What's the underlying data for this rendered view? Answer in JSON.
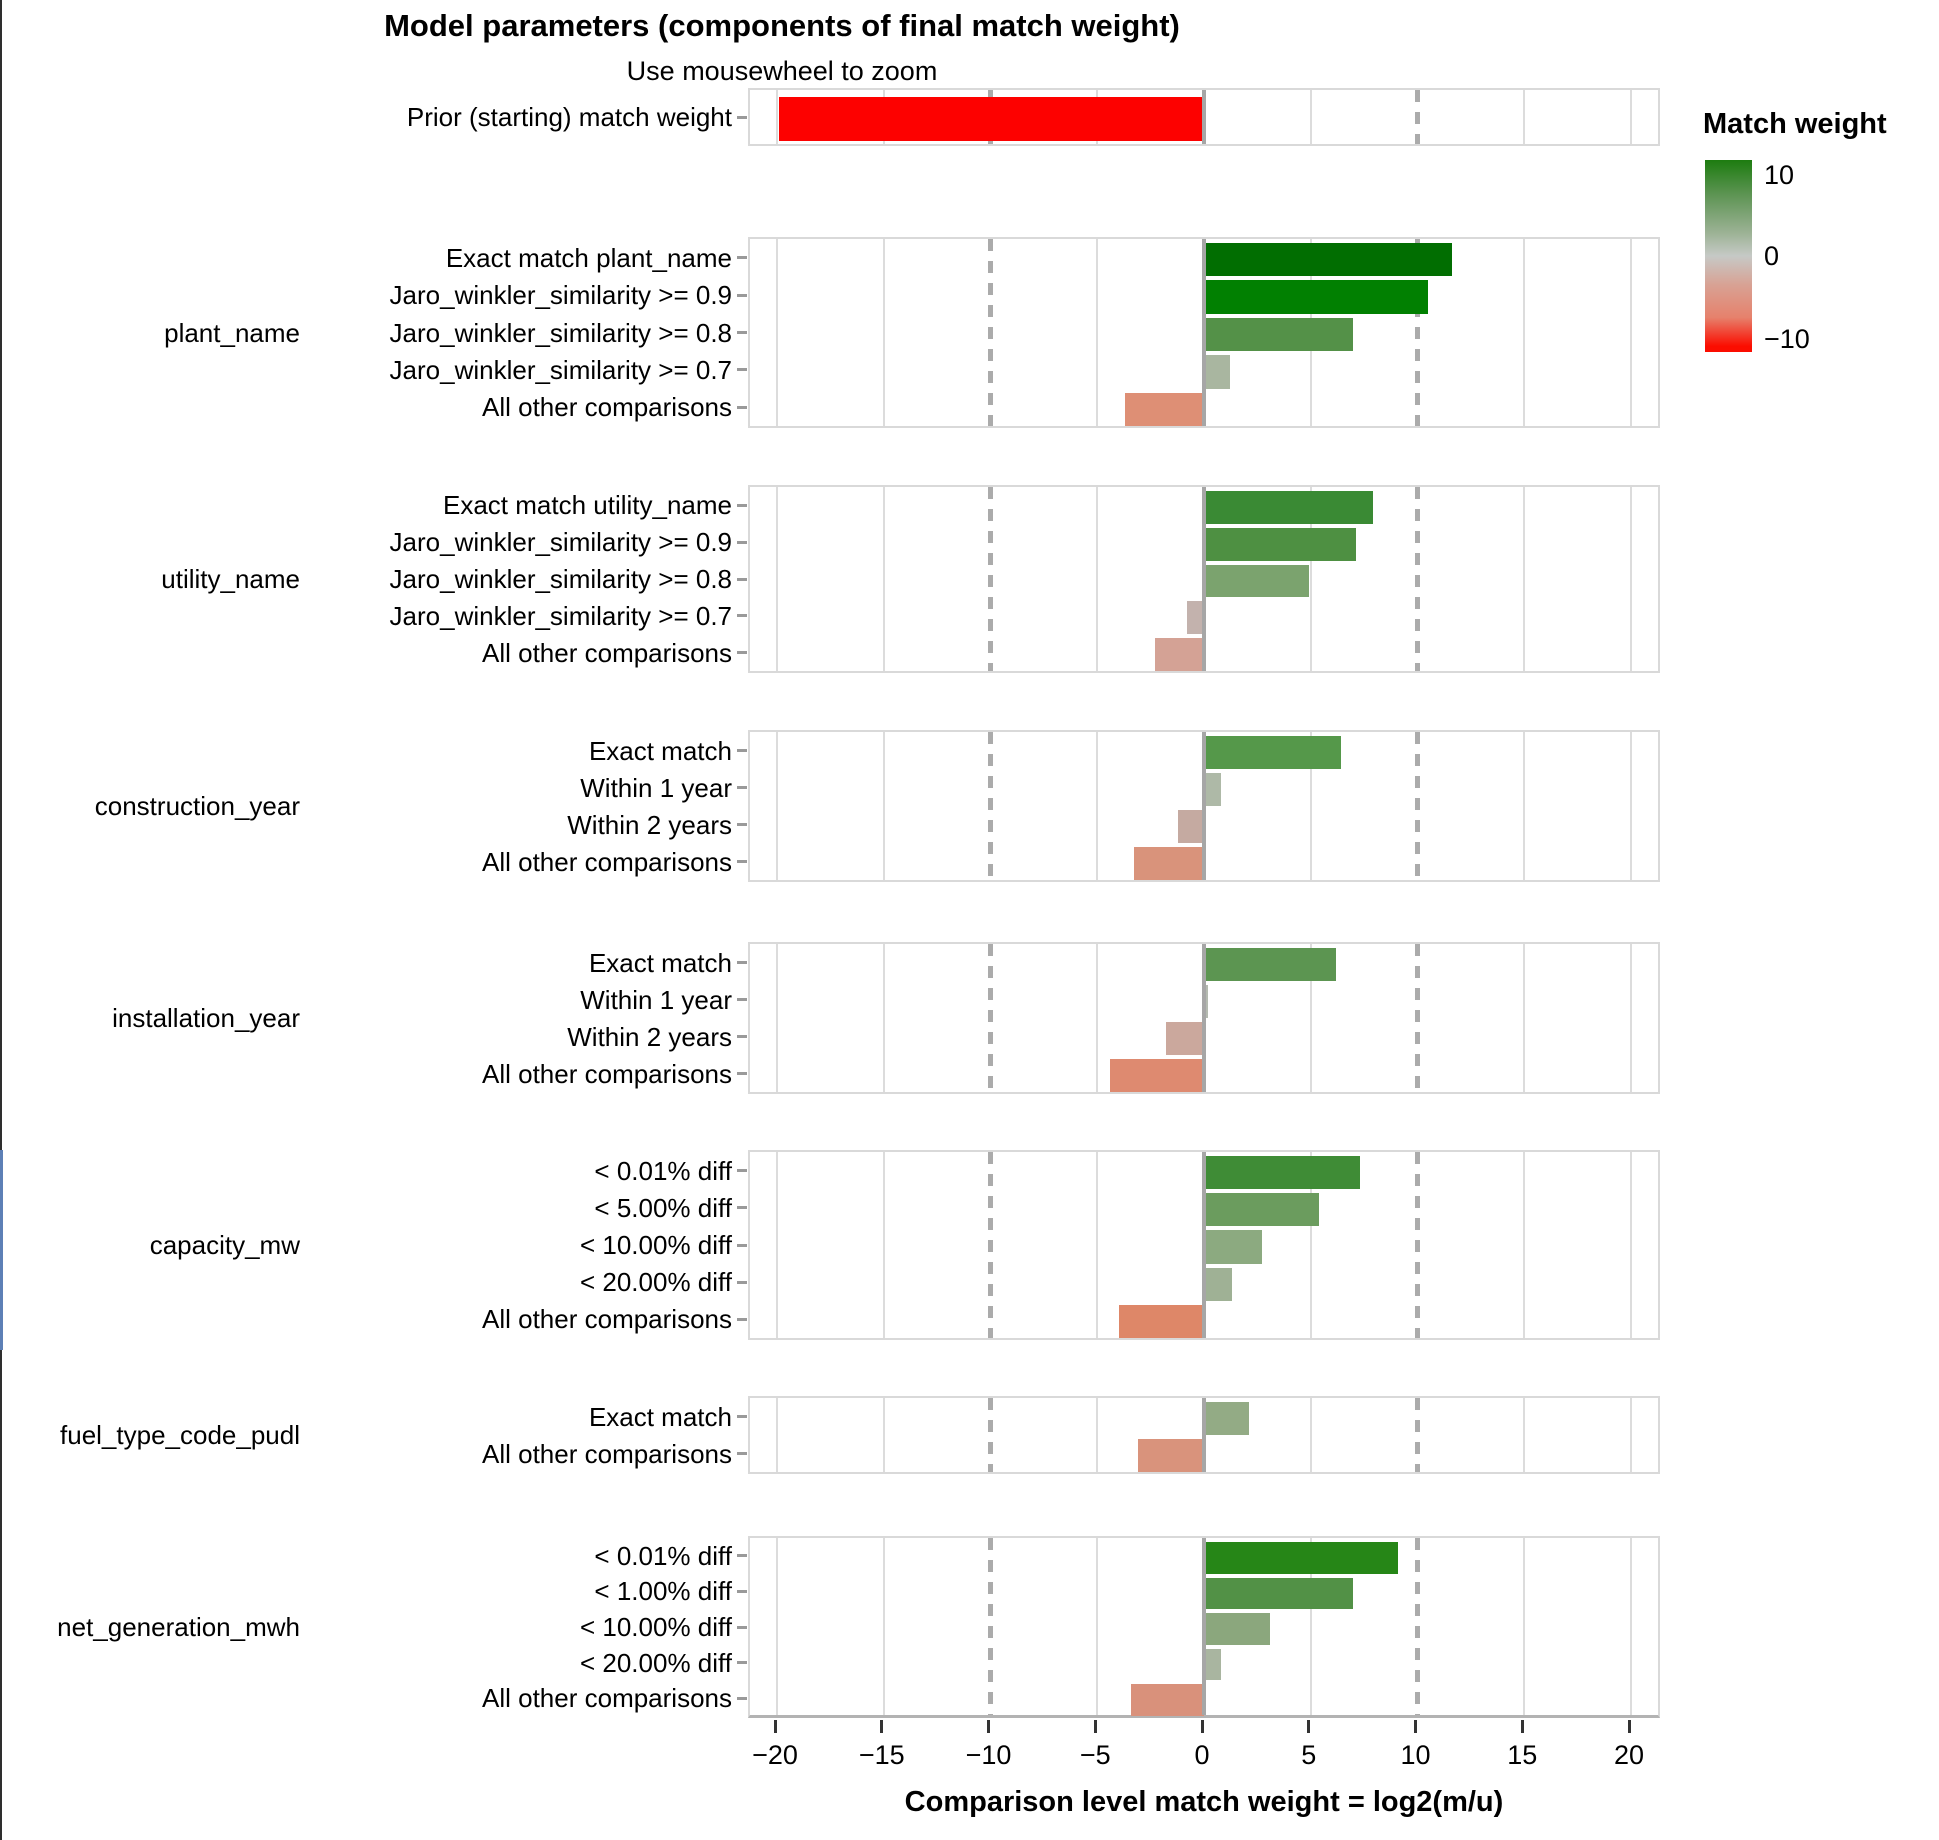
{
  "title": "Model parameters (components of final match weight)",
  "subtitle": "Use mousewheel to zoom",
  "xlabel": "Comparison level match weight = log2(m/u)",
  "legend": {
    "title": "Match weight",
    "ticks": [
      "10",
      "0",
      "−10"
    ],
    "gradient_colors": [
      "#1d7c10",
      "#5d9453",
      "#9cb295",
      "#c6c9c6",
      "#d8a294",
      "#e6816c",
      "#fb0d00"
    ]
  },
  "axis": {
    "domain": [
      -21.3,
      21.4
    ],
    "ticks": [
      {
        "v": -20,
        "label": "−20"
      },
      {
        "v": -15,
        "label": "−15"
      },
      {
        "v": -10,
        "label": "−10"
      },
      {
        "v": -5,
        "label": "−5"
      },
      {
        "v": 0,
        "label": "0"
      },
      {
        "v": 5,
        "label": "5"
      },
      {
        "v": 10,
        "label": "10"
      },
      {
        "v": 15,
        "label": "15"
      },
      {
        "v": 20,
        "label": "20"
      }
    ],
    "dashed_reference_lines": [
      -10,
      10
    ],
    "solid_gridlines": [
      -20,
      -15,
      -5,
      5,
      15,
      20
    ]
  },
  "chart_data": {
    "type": "bar",
    "orientation": "horizontal",
    "xlabel": "Comparison level match weight = log2(m/u)",
    "xlim": [
      -21.3,
      21.4
    ],
    "legend_position": "right",
    "grid": true,
    "panels": [
      {
        "group": "",
        "rows": [
          {
            "label": "Prior (starting) match weight",
            "value": -19.9,
            "color": "#fd0100"
          }
        ]
      },
      {
        "group": "plant_name",
        "rows": [
          {
            "label": "Exact match plant_name",
            "value": 11.6,
            "color": "#016e01"
          },
          {
            "label": "Jaro_winkler_similarity >= 0.9",
            "value": 10.5,
            "color": "#018001"
          },
          {
            "label": "Jaro_winkler_similarity >= 0.8",
            "value": 7.0,
            "color": "#549148"
          },
          {
            "label": "Jaro_winkler_similarity >= 0.7",
            "value": 1.2,
            "color": "#a9b6a0"
          },
          {
            "label": "All other comparisons",
            "value": -3.7,
            "color": "#de8f75"
          }
        ]
      },
      {
        "group": "utility_name",
        "rows": [
          {
            "label": "Exact match utility_name",
            "value": 7.9,
            "color": "#3a8a34"
          },
          {
            "label": "Jaro_winkler_similarity >= 0.9",
            "value": 7.1,
            "color": "#4e9042"
          },
          {
            "label": "Jaro_winkler_similarity >= 0.8",
            "value": 4.9,
            "color": "#7ba36e"
          },
          {
            "label": "Jaro_winkler_similarity >= 0.7",
            "value": -0.8,
            "color": "#c3b2ad"
          },
          {
            "label": "All other comparisons",
            "value": -2.3,
            "color": "#d4a295"
          }
        ]
      },
      {
        "group": "construction_year",
        "rows": [
          {
            "label": "Exact match",
            "value": 6.4,
            "color": "#55984a"
          },
          {
            "label": "Within 1 year",
            "value": 0.8,
            "color": "#aeb9a7"
          },
          {
            "label": "Within 2 years",
            "value": -1.2,
            "color": "#c5aaa1"
          },
          {
            "label": "All other comparisons",
            "value": -3.3,
            "color": "#d9937b"
          }
        ]
      },
      {
        "group": "installation_year",
        "rows": [
          {
            "label": "Exact match",
            "value": 6.2,
            "color": "#5c9551"
          },
          {
            "label": "Within 1 year",
            "value": 0.2,
            "color": "#b4bab0"
          },
          {
            "label": "Within 2 years",
            "value": -1.8,
            "color": "#cba89d"
          },
          {
            "label": "All other comparisons",
            "value": -4.4,
            "color": "#de8a70"
          }
        ]
      },
      {
        "group": "capacity_mw",
        "rows": [
          {
            "label": "< 0.01% diff",
            "value": 7.3,
            "color": "#3f8c36"
          },
          {
            "label": "< 5.00% diff",
            "value": 5.4,
            "color": "#6b9c5e"
          },
          {
            "label": "< 10.00% diff",
            "value": 2.7,
            "color": "#8caa80"
          },
          {
            "label": "< 20.00% diff",
            "value": 1.3,
            "color": "#9fb195"
          },
          {
            "label": "All other comparisons",
            "value": -4.0,
            "color": "#de8768"
          }
        ]
      },
      {
        "group": "fuel_type_code_pudl",
        "rows": [
          {
            "label": "Exact match",
            "value": 2.1,
            "color": "#93ab85"
          },
          {
            "label": "All other comparisons",
            "value": -3.1,
            "color": "#d9937c"
          }
        ]
      },
      {
        "group": "net_generation_mwh",
        "rows": [
          {
            "label": "< 0.01% diff",
            "value": 9.1,
            "color": "#268617"
          },
          {
            "label": "< 1.00% diff",
            "value": 7.0,
            "color": "#529146"
          },
          {
            "label": "< 10.00% diff",
            "value": 3.1,
            "color": "#8ba77d"
          },
          {
            "label": "< 20.00% diff",
            "value": 0.8,
            "color": "#a9b5a0"
          },
          {
            "label": "All other comparisons",
            "value": -3.4,
            "color": "#d9917b"
          }
        ]
      }
    ]
  }
}
